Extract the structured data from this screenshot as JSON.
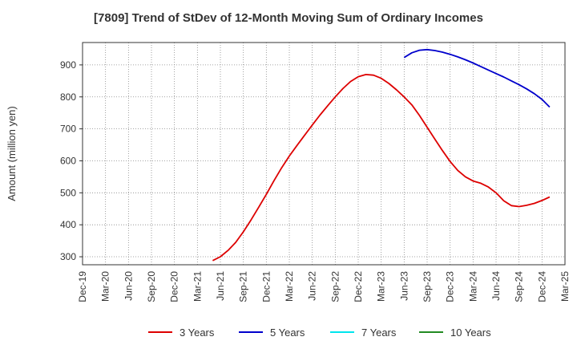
{
  "chart_data": {
    "type": "line",
    "title": "[7809]  Trend of StDev of 12-Month Moving Sum of Ordinary Incomes",
    "ylabel": "Amount (million yen)",
    "xlabel": "",
    "ylim": [
      275,
      970
    ],
    "yticks": [
      300,
      400,
      500,
      600,
      700,
      800,
      900
    ],
    "x_tick_labels": [
      "Dec-19",
      "Mar-20",
      "Jun-20",
      "Sep-20",
      "Dec-20",
      "Mar-21",
      "Jun-21",
      "Sep-21",
      "Dec-21",
      "Mar-22",
      "Jun-22",
      "Sep-22",
      "Dec-22",
      "Mar-23",
      "Jun-23",
      "Sep-23",
      "Dec-23",
      "Mar-24",
      "Jun-24",
      "Sep-24",
      "Dec-24",
      "Mar-25"
    ],
    "grid": true,
    "legend_position": "bottom",
    "series": [
      {
        "name": "3 Years",
        "color": "#dd0000",
        "points": [
          [
            "May-21",
            288
          ],
          [
            "Jun-21",
            300
          ],
          [
            "Jul-21",
            320
          ],
          [
            "Aug-21",
            345
          ],
          [
            "Sep-21",
            378
          ],
          [
            "Oct-21",
            415
          ],
          [
            "Nov-21",
            455
          ],
          [
            "Dec-21",
            495
          ],
          [
            "Jan-22",
            538
          ],
          [
            "Feb-22",
            578
          ],
          [
            "Mar-22",
            615
          ],
          [
            "Apr-22",
            648
          ],
          [
            "May-22",
            680
          ],
          [
            "Jun-22",
            712
          ],
          [
            "Jul-22",
            743
          ],
          [
            "Aug-22",
            772
          ],
          [
            "Sep-22",
            800
          ],
          [
            "Oct-22",
            826
          ],
          [
            "Nov-22",
            848
          ],
          [
            "Dec-22",
            863
          ],
          [
            "Jan-23",
            870
          ],
          [
            "Feb-23",
            868
          ],
          [
            "Mar-23",
            858
          ],
          [
            "Apr-23",
            842
          ],
          [
            "May-23",
            822
          ],
          [
            "Jun-23",
            800
          ],
          [
            "Jul-23",
            775
          ],
          [
            "Aug-23",
            742
          ],
          [
            "Sep-23",
            705
          ],
          [
            "Oct-23",
            668
          ],
          [
            "Nov-23",
            632
          ],
          [
            "Dec-23",
            598
          ],
          [
            "Jan-24",
            570
          ],
          [
            "Feb-24",
            550
          ],
          [
            "Mar-24",
            537
          ],
          [
            "Apr-24",
            530
          ],
          [
            "May-24",
            518
          ],
          [
            "Jun-24",
            500
          ],
          [
            "Jul-24",
            475
          ],
          [
            "Aug-24",
            460
          ],
          [
            "Sep-24",
            457
          ],
          [
            "Oct-24",
            461
          ],
          [
            "Nov-24",
            467
          ],
          [
            "Dec-24",
            476
          ],
          [
            "Jan-25",
            487
          ]
        ]
      },
      {
        "name": "5 Years",
        "color": "#0000cc",
        "points": [
          [
            "Jun-23",
            923
          ],
          [
            "Jul-23",
            938
          ],
          [
            "Aug-23",
            946
          ],
          [
            "Sep-23",
            948
          ],
          [
            "Oct-23",
            945
          ],
          [
            "Nov-23",
            940
          ],
          [
            "Dec-23",
            933
          ],
          [
            "Jan-24",
            925
          ],
          [
            "Feb-24",
            916
          ],
          [
            "Mar-24",
            906
          ],
          [
            "Apr-24",
            895
          ],
          [
            "May-24",
            884
          ],
          [
            "Jun-24",
            873
          ],
          [
            "Jul-24",
            862
          ],
          [
            "Aug-24",
            850
          ],
          [
            "Sep-24",
            838
          ],
          [
            "Oct-24",
            825
          ],
          [
            "Nov-24",
            810
          ],
          [
            "Dec-24",
            792
          ],
          [
            "Jan-25",
            768
          ]
        ]
      },
      {
        "name": "7 Years",
        "color": "#00e5ee",
        "points": []
      },
      {
        "name": "10 Years",
        "color": "#228b22",
        "points": []
      }
    ]
  }
}
